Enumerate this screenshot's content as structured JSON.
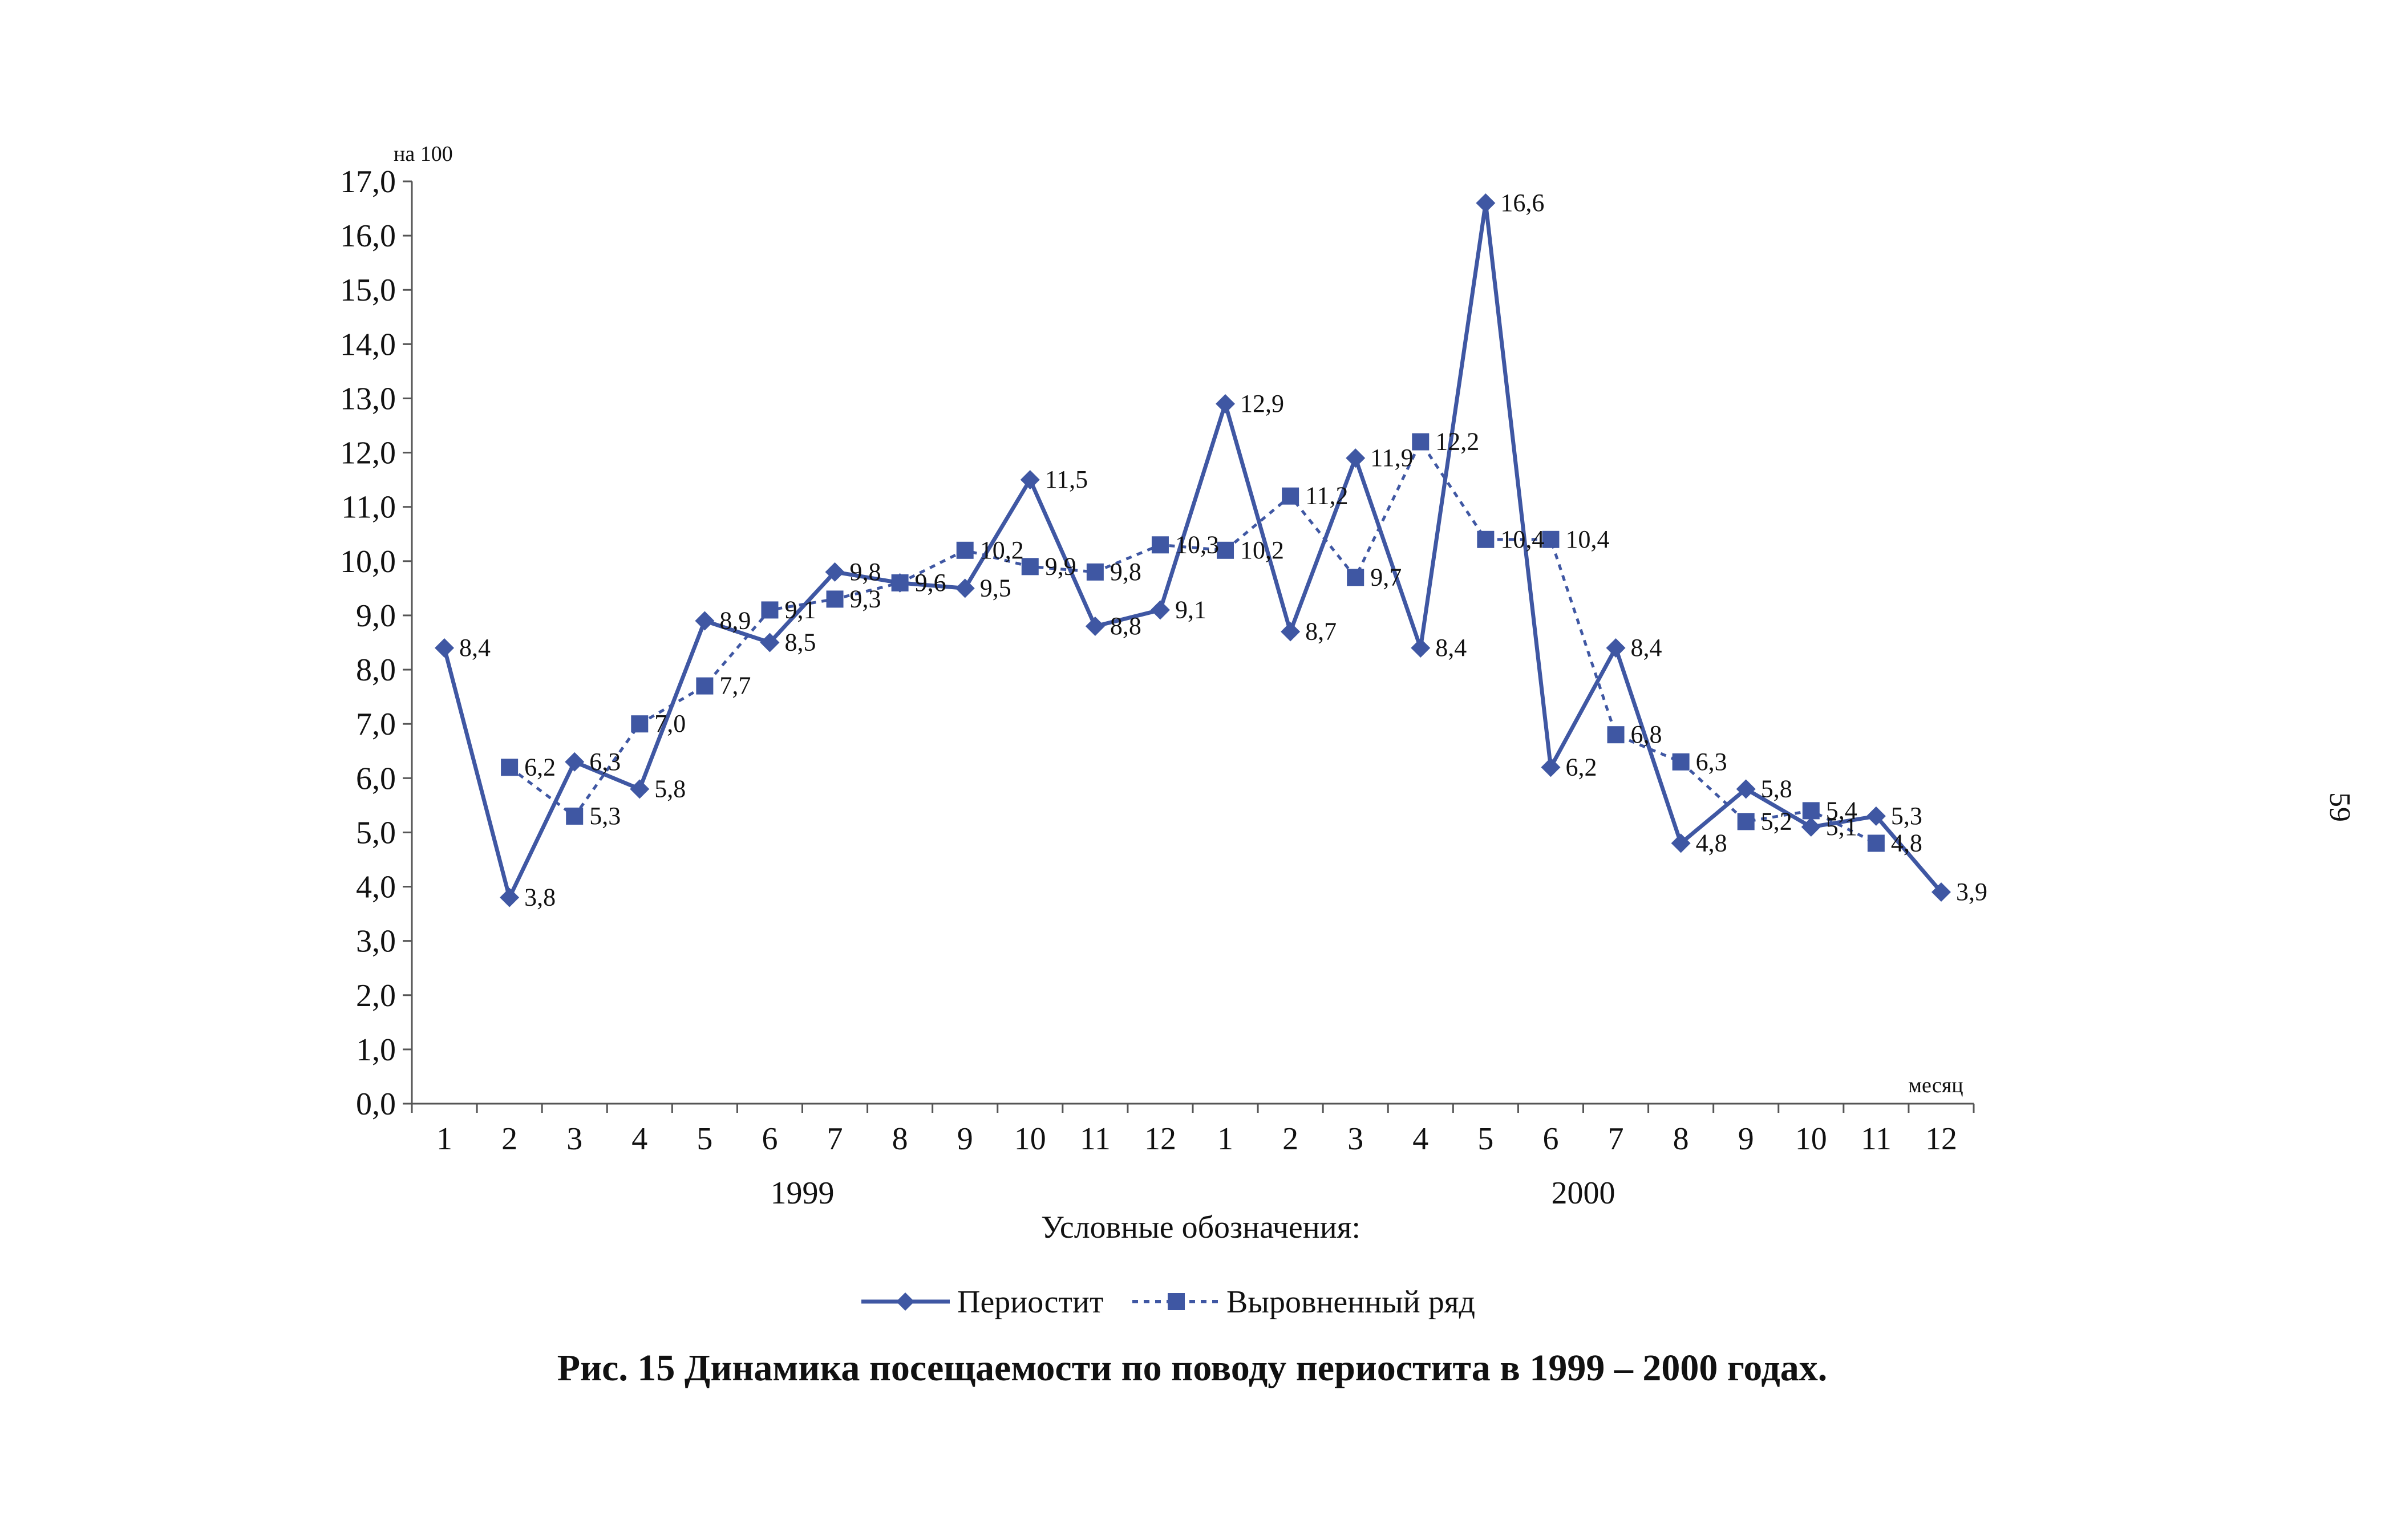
{
  "page_number": "59",
  "figure": {
    "caption": "Рис. 15  Динамика посещаемости по поводу периостита в 1999 – 2000 годах.",
    "legend_title": "Условные обозначения:"
  },
  "colors": {
    "series": "#3f57a3",
    "axis": "#555555"
  },
  "chart_data": {
    "type": "line",
    "y_unit_label": "на 100",
    "xlabel": "месяц",
    "ylim": [
      0,
      17
    ],
    "y_tick_step": 1,
    "y_tick_labels": [
      "0,0",
      "1,0",
      "2,0",
      "3,0",
      "4,0",
      "5,0",
      "6,0",
      "7,0",
      "8,0",
      "9,0",
      "10,0",
      "11,0",
      "12,0",
      "13,0",
      "14,0",
      "15,0",
      "16,0",
      "17,0"
    ],
    "categories": [
      "1",
      "2",
      "3",
      "4",
      "5",
      "6",
      "7",
      "8",
      "9",
      "10",
      "11",
      "12",
      "1",
      "2",
      "3",
      "4",
      "5",
      "6",
      "7",
      "8",
      "9",
      "10",
      "11",
      "12"
    ],
    "year_groups": [
      {
        "label": "1999",
        "from": 0,
        "to": 11
      },
      {
        "label": "2000",
        "from": 12,
        "to": 23
      }
    ],
    "series": [
      {
        "name": "Периостит",
        "style": "solid",
        "marker": "diamond",
        "values": [
          8.4,
          3.8,
          6.3,
          5.8,
          8.9,
          8.5,
          9.8,
          9.6,
          9.5,
          11.5,
          8.8,
          9.1,
          12.9,
          8.7,
          11.9,
          8.4,
          16.6,
          6.2,
          8.4,
          4.8,
          5.8,
          5.1,
          5.3,
          3.9
        ],
        "labels": [
          "8,4",
          "3,8",
          "6,3",
          "5,8",
          "8,9",
          "8,5",
          "9,8",
          "9,6",
          "9,5",
          "11,5",
          "8,8",
          "9,1",
          "12,9",
          "8,7",
          "11,9",
          "8,4",
          "16,6",
          "6,2",
          "8,4",
          "4,8",
          "5,8",
          "5,1",
          "5,3",
          "3,9"
        ]
      },
      {
        "name": "Выровненный ряд",
        "style": "dotted",
        "marker": "square",
        "values": [
          null,
          6.2,
          5.3,
          7.0,
          7.7,
          9.1,
          9.3,
          9.6,
          10.2,
          9.9,
          9.8,
          10.3,
          10.2,
          11.2,
          9.7,
          12.2,
          10.4,
          10.4,
          6.8,
          6.3,
          5.2,
          5.4,
          4.8,
          null
        ],
        "labels": [
          null,
          "6,2",
          "5,3",
          "7,0",
          "7,7",
          "9,1",
          "9,3",
          "9,6",
          "10,2",
          "9,9",
          "9,8",
          "10,3",
          "10,2",
          "11,2",
          "9,7",
          "12,2",
          "10,4",
          "10,4",
          "6,8",
          "6,3",
          "5,2",
          "5,4",
          "4,8",
          null
        ]
      }
    ]
  }
}
